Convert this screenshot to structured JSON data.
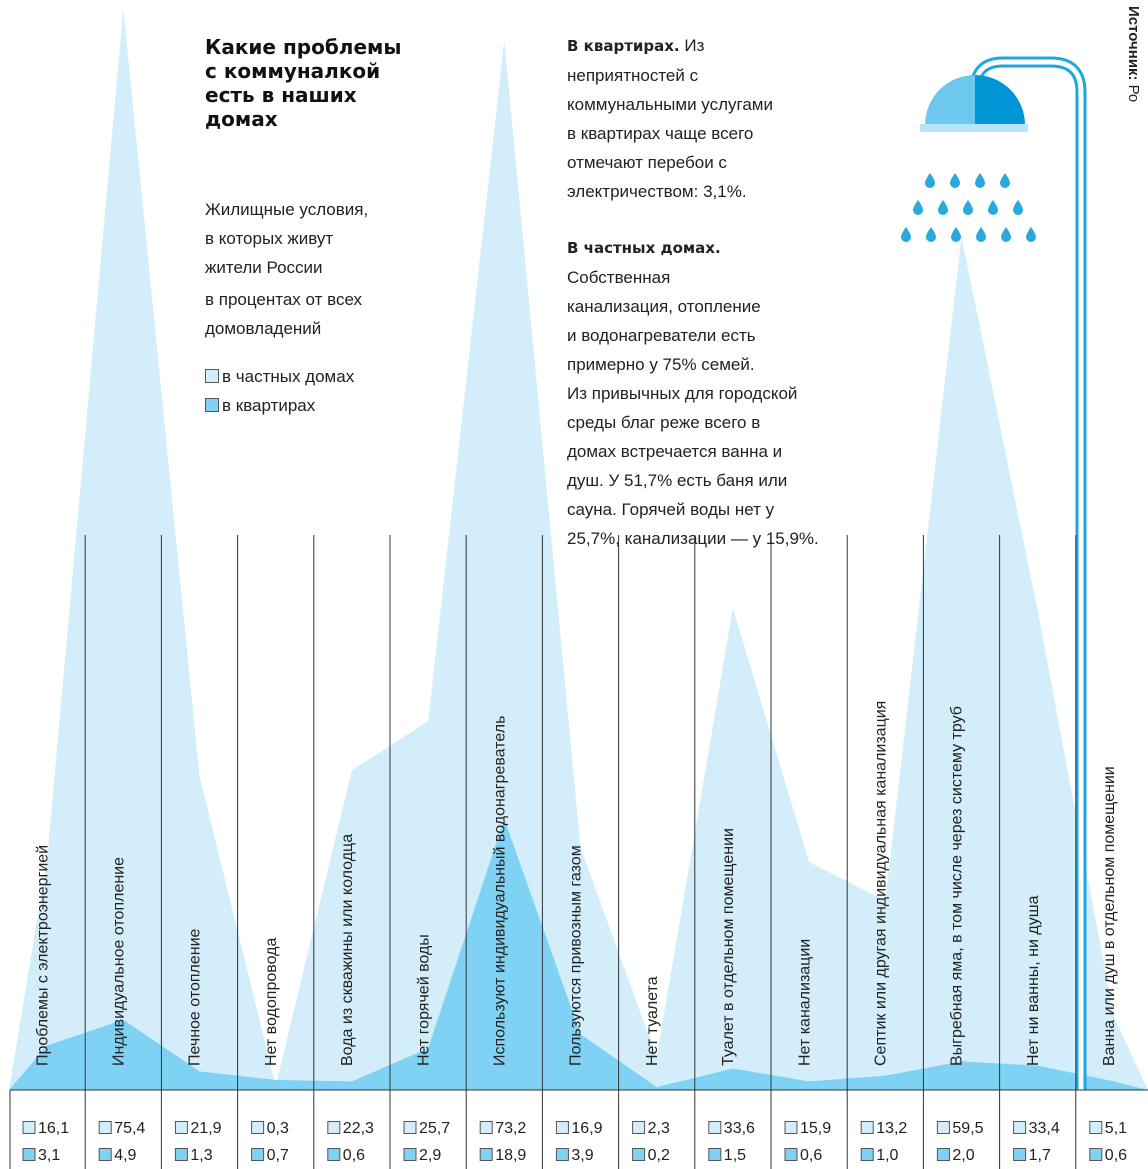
{
  "title_lines": [
    "Какие проблемы",
    "с коммуналкой",
    "есть в наших",
    "домах"
  ],
  "subtitle_lines": [
    "Жилищные условия,",
    "в которых живут",
    "жители России"
  ],
  "unit_lines": [
    "в процентах от всех",
    "домовладений"
  ],
  "apartments_note": {
    "heading": "В квартирах.",
    "lines": [
      "Из",
      "неприятностей с",
      "коммунальными услугами",
      "в квартирах чаще всего",
      "отмечают перебои с",
      "электричеством: 3,1%."
    ]
  },
  "private_note": {
    "heading": "В частных домах.",
    "lines": [
      "Собственная",
      "канализация, отопление",
      "и водонагреватели есть",
      "примерно у 75% семей.",
      "Из привычных для городской",
      "среды благ реже всего в",
      "домах встречается ванна и",
      "душ. У 51,7% есть баня или",
      "сауна. Горячей воды нет у",
      "25,7%, канализации — у 15,9%."
    ]
  },
  "source_label": "Источник:",
  "source": "Ро",
  "chart_data": {
    "type": "area",
    "categories": [
      "Проблемы с электроэнергией",
      "Индивидуальное отопление",
      "Печное отопление",
      "Нет водопровода",
      "Вода из скважины или колодца",
      "Нет горячей воды",
      "Используют индивидуальный водонагреватель",
      "Пользуются привозным газом",
      "Нет туалета",
      "Туалет в отдельном помещении",
      "Нет канализации",
      "Септик или другая индивидуальная канализация",
      "Выгребная яма, в том числе через систему труб",
      "Нет ни ванны, ни душа",
      "Ванна или душ в отдельном помещении"
    ],
    "series": [
      {
        "name": "в частных домах",
        "color": "#d3eefa",
        "values": [
          16.1,
          75.4,
          21.9,
          0.3,
          22.3,
          25.7,
          73.2,
          16.9,
          2.3,
          33.6,
          15.9,
          13.2,
          59.5,
          33.4,
          5.1
        ],
        "value_labels": [
          "16,1",
          "75,4",
          "21,9",
          "0,3",
          "22,3",
          "25,7",
          "73,2",
          "16,9",
          "2,3",
          "33,6",
          "15,9",
          "13,2",
          "59,5",
          "33,4",
          "5,1"
        ]
      },
      {
        "name": "в квартирах",
        "color": "#7fd2f4",
        "values": [
          3.1,
          4.9,
          1.3,
          0.7,
          0.6,
          2.9,
          18.9,
          3.9,
          0.2,
          1.5,
          0.6,
          1.0,
          2.0,
          1.7,
          0.6
        ],
        "value_labels": [
          "3,1",
          "4,9",
          "1,3",
          "0,7",
          "0,6",
          "2,9",
          "18,9",
          "3,9",
          "0,2",
          "1,5",
          "0,6",
          "1,0",
          "2,0",
          "1,7",
          "0,6"
        ]
      }
    ],
    "ylim": [
      0,
      76
    ]
  }
}
